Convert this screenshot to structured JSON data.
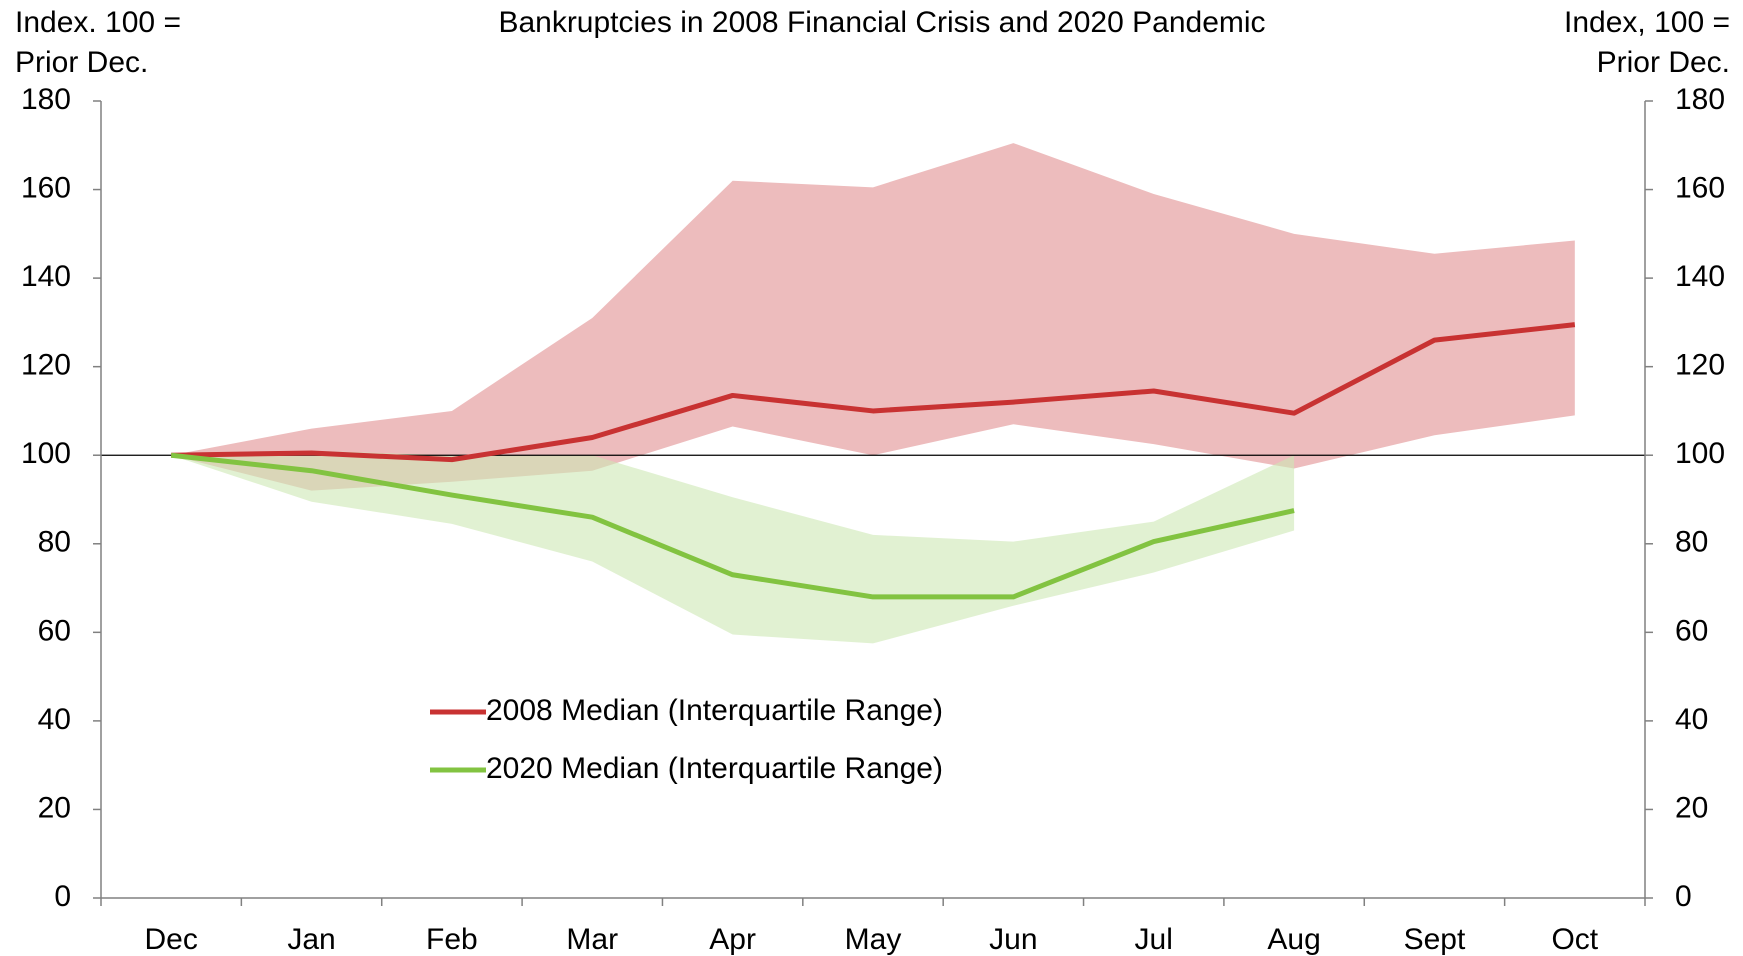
{
  "chart_data": {
    "type": "line",
    "title": "Bankruptcies  in 2008  Financial Crisis and 2020 Pandemic",
    "ylabel": [
      "Index. 100 =",
      "Prior Dec."
    ],
    "y2label": [
      "Index, 100 =",
      "Prior Dec."
    ],
    "categories": [
      "Dec",
      "Jan",
      "Feb",
      "Mar",
      "Apr",
      "May",
      "Jun",
      "Jul",
      "Aug",
      "Sept",
      "Oct"
    ],
    "series": [
      {
        "name": "2008 Median (Interquartile Range)",
        "color": "#c83232",
        "band_color": "#edbcbd",
        "values": [
          100,
          100.5,
          99,
          104,
          113.5,
          110,
          112,
          114.5,
          109.5,
          126,
          129.5
        ],
        "band_upper": [
          100,
          106,
          110,
          131,
          162,
          160.5,
          170.5,
          159,
          150,
          145.5,
          148.5
        ],
        "band_lower": [
          100,
          92,
          94,
          96.5,
          106.5,
          100,
          107,
          102.5,
          97,
          104.5,
          109
        ]
      },
      {
        "name": "2020 Median (Interquartile Range)",
        "color": "#82c341",
        "band_color": "#cde8b4",
        "values": [
          100,
          96.5,
          91,
          86,
          73,
          68,
          68,
          80.5,
          87.5,
          null,
          null
        ],
        "band_upper": [
          100,
          101,
          100,
          100,
          90.5,
          82,
          80.5,
          85,
          100,
          null,
          null
        ],
        "band_lower": [
          100,
          89.5,
          84.5,
          76,
          59.5,
          57.5,
          66,
          73.5,
          83,
          null,
          null
        ]
      }
    ],
    "ylim": [
      0,
      180
    ],
    "yticks": [
      0,
      20,
      40,
      60,
      80,
      100,
      120,
      140,
      160,
      180
    ],
    "y2lim": [
      0,
      180
    ],
    "y2ticks": [
      0,
      20,
      40,
      60,
      80,
      100,
      120,
      140,
      160,
      180
    ],
    "reference_line": 100,
    "legend": "lower left"
  }
}
